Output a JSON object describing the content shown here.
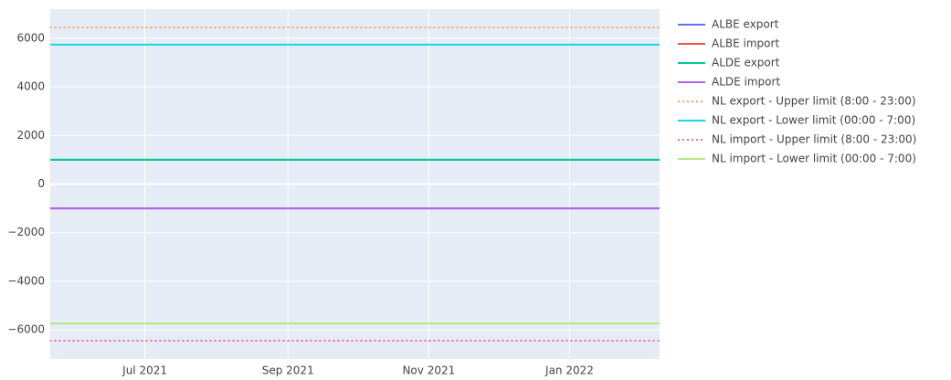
{
  "chart_data": {
    "type": "line",
    "x": [
      "2021-05",
      "2021-06",
      "2021-07",
      "2021-08",
      "2021-09",
      "2021-10",
      "2021-11",
      "2021-12",
      "2022-01",
      "2022-02",
      "2022-03"
    ],
    "xlim": [
      "2021-05-21",
      "2022-02-09"
    ],
    "xticks": [
      {
        "value": "2021-07-01",
        "label": "Jul 2021"
      },
      {
        "value": "2021-09-01",
        "label": "Sep 2021"
      },
      {
        "value": "2021-11-01",
        "label": "Nov 2021"
      },
      {
        "value": "2022-01-01",
        "label": "Jan 2022"
      }
    ],
    "ylim": [
      -7200,
      7200
    ],
    "yticks": [
      {
        "value": -6000,
        "label": "−6000"
      },
      {
        "value": -4000,
        "label": "−4000"
      },
      {
        "value": -2000,
        "label": "−2000"
      },
      0,
      2000,
      4000,
      6000
    ],
    "grid": true,
    "legend": "right",
    "series": [
      {
        "name": "ALBE export",
        "color": "#636efa",
        "dash": "solid",
        "values": [
          1000,
          1000,
          1000,
          1000,
          1000,
          1000,
          1000,
          1000,
          1000,
          1000,
          1000
        ]
      },
      {
        "name": "ALBE import",
        "color": "#ef553b",
        "dash": "solid",
        "values": [
          -1000,
          -1000,
          -1000,
          -1000,
          -1000,
          -1000,
          -1000,
          -1000,
          -1000,
          -1000,
          -1000
        ]
      },
      {
        "name": "ALDE export",
        "color": "#00cc96",
        "dash": "solid",
        "values": [
          1000,
          1000,
          1000,
          1000,
          1000,
          1000,
          1000,
          1000,
          1000,
          1000,
          1000
        ]
      },
      {
        "name": "ALDE import",
        "color": "#ab63fa",
        "dash": "solid",
        "values": [
          -1000,
          -1000,
          -1000,
          -1000,
          -1000,
          -1000,
          -1000,
          -1000,
          -1000,
          -1000,
          -1000
        ]
      },
      {
        "name": "NL export - Upper limit (8:00 - 23:00)",
        "color": "#ffa15a",
        "dash": "dot",
        "values": [
          6450,
          6450,
          6450,
          6450,
          6450,
          6450,
          6450,
          6450,
          6450,
          6450,
          6450
        ]
      },
      {
        "name": "NL export - Lower limit (00:00 - 7:00)",
        "color": "#19d3f3",
        "dash": "solid",
        "values": [
          5740,
          5740,
          5740,
          5740,
          5740,
          5740,
          5740,
          5740,
          5740,
          5740,
          5740
        ]
      },
      {
        "name": "NL import - Upper limit (8:00 - 23:00)",
        "color": "#ff6692",
        "dash": "dot",
        "values": [
          -6450,
          -6450,
          -6450,
          -6450,
          -6450,
          -6450,
          -6450,
          -6450,
          -6450,
          -6450,
          -6450
        ]
      },
      {
        "name": "NL import - Lower limit (00:00 - 7:00)",
        "color": "#b6e880",
        "dash": "solid",
        "values": [
          -5740,
          -5740,
          -5740,
          -5740,
          -5740,
          -5740,
          -5740,
          -5740,
          -5740,
          -5740,
          -5740
        ]
      }
    ]
  }
}
